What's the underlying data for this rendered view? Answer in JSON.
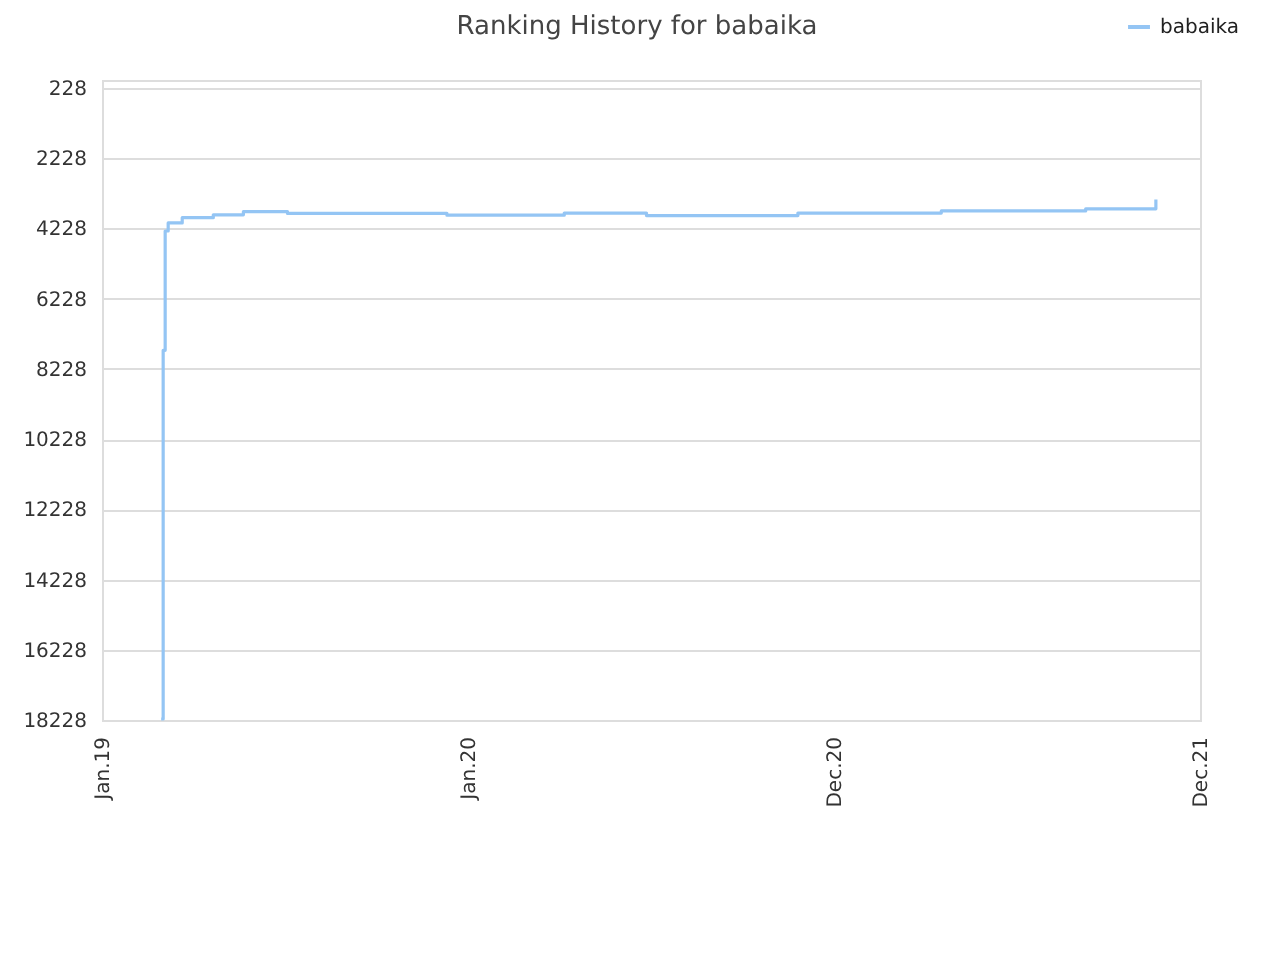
{
  "chart_data": {
    "type": "step",
    "title": "Ranking History for babaika",
    "x": [
      "2019-03-01",
      "2019-03-03",
      "2019-03-05",
      "2019-03-08",
      "2019-03-22",
      "2019-04-22",
      "2019-05-22",
      "2019-07-05",
      "2019-12-11",
      "2020-04-06",
      "2020-06-27",
      "2020-11-25",
      "2021-04-17",
      "2021-09-08",
      "2021-11-17"
    ],
    "series": [
      {
        "name": "babaika",
        "color": "#94c5f4",
        "values": [
          18200,
          7700,
          4300,
          4070,
          3920,
          3840,
          3750,
          3800,
          3850,
          3790,
          3860,
          3790,
          3730,
          3670,
          3400
        ]
      }
    ],
    "xlim": [
      "2019-01-01",
      "2021-12-31"
    ],
    "xticks": [
      {
        "value": "2019-01-01",
        "label": "Jan.19"
      },
      {
        "value": "2020-01-01",
        "label": "Jan.20"
      },
      {
        "value": "2020-12-31",
        "label": "Dec.20"
      },
      {
        "value": "2021-12-31",
        "label": "Dec.21"
      }
    ],
    "ylim": [
      18228,
      0
    ],
    "yticks": [
      228,
      2228,
      4228,
      6228,
      8228,
      10228,
      12228,
      14228,
      16228,
      18228
    ],
    "grid": "y",
    "legend": "top right"
  }
}
